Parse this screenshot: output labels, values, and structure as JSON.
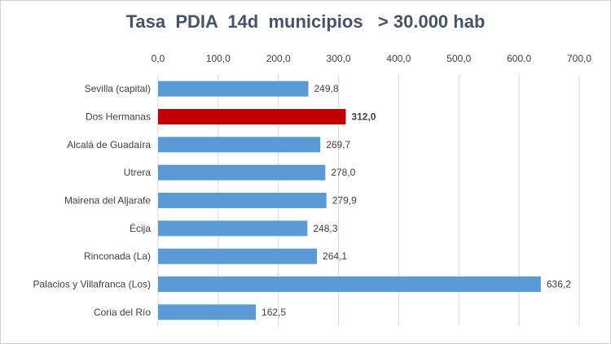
{
  "chart_data": {
    "type": "bar",
    "orientation": "horizontal",
    "title": "Tasa  PDIA  14d  municipios   > 30.000 hab",
    "categories": [
      "Sevilla (capital)",
      "Dos Hermanas",
      "Alcalá de Guadaíra",
      "Utrera",
      "Mairena del Aljarafe",
      "Écija",
      "Rinconada (La)",
      "Palacios y Villafranca (Los)",
      "Coria del Río"
    ],
    "values": [
      249.8,
      312.0,
      269.7,
      278.0,
      279.9,
      248.3,
      264.1,
      636.2,
      162.5
    ],
    "value_labels": [
      "249,8",
      "312,0",
      "269,7",
      "278,0",
      "279,9",
      "248,3",
      "264,1",
      "636,2",
      "162,5"
    ],
    "highlight_index": 1,
    "xlim": [
      0,
      700
    ],
    "x_ticks": [
      0,
      100,
      200,
      300,
      400,
      500,
      600,
      700
    ],
    "x_tick_labels": [
      "0,0",
      "100,0",
      "200,0",
      "300,0",
      "400,0",
      "500,0",
      "600,0",
      "700,0"
    ],
    "axis_position": "top",
    "grid": true,
    "legend": "none",
    "colors": {
      "bar": "#5b9bd5",
      "highlight": "#c00000",
      "title": "#44546a",
      "grid": "#d9d9d9",
      "text": "#404040"
    }
  }
}
